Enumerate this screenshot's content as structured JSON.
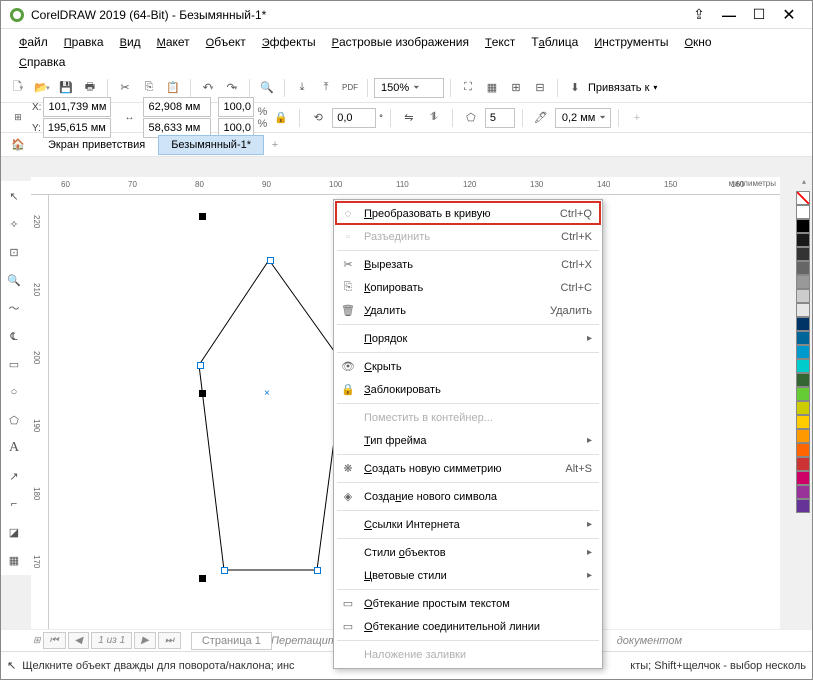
{
  "window": {
    "title": "CorelDRAW 2019 (64-Bit) - Безымянный-1*"
  },
  "menu": {
    "file": "Файл",
    "edit": "Правка",
    "view": "Вид",
    "layout": "Макет",
    "object": "Объект",
    "effects": "Эффекты",
    "raster": "Растровые изображения",
    "text": "Текст",
    "table": "Таблица",
    "tools": "Инструменты",
    "window": "Окно",
    "help": "Справка"
  },
  "toolbar1": {
    "zoom_value": "150%",
    "snap_label": "Привязать к"
  },
  "props": {
    "x": "101,739 мм",
    "y": "195,615 мм",
    "w": "62,908 мм",
    "h": "58,633 мм",
    "sx": "100,0",
    "sy": "100,0",
    "rot": "0,0",
    "sides": "5",
    "outline": "0,2 мм"
  },
  "tabs": {
    "welcome": "Экран приветствия",
    "doc": "Безымянный-1*"
  },
  "pagestrip": {
    "nav": "1 из 1",
    "page": "Страница 1"
  },
  "hints": {
    "drag": "Перетащите сюда цве",
    "doc": "документом"
  },
  "status": {
    "text": "Щелкните объект дважды для поворота/наклона; инс",
    "text2": "кты; Shift+щелчок - выбор несколь"
  },
  "context": {
    "items": [
      {
        "icon": "◌",
        "label": "Преобразовать в кривую",
        "shortcut": "Ctrl+Q",
        "u": "П"
      },
      {
        "icon": "▫",
        "label": "Разъединить",
        "shortcut": "Ctrl+K",
        "disabled": true
      },
      {
        "sep": true
      },
      {
        "icon": "✂",
        "label": "Вырезать",
        "shortcut": "Ctrl+X",
        "u": "В"
      },
      {
        "icon": "⎘",
        "label": "Копировать",
        "shortcut": "Ctrl+C",
        "u": "К"
      },
      {
        "icon": "🗑",
        "label": "Удалить",
        "shortcut": "Удалить",
        "u": "У"
      },
      {
        "sep": true
      },
      {
        "icon": "",
        "label": "Порядок",
        "arrow": true,
        "u": "П"
      },
      {
        "sep": true
      },
      {
        "icon": "👁",
        "label": "Скрыть",
        "u": "С"
      },
      {
        "icon": "🔒",
        "label": "Заблокировать",
        "u": "З"
      },
      {
        "sep": true
      },
      {
        "icon": "",
        "label": "Поместить в контейнер...",
        "disabled": true
      },
      {
        "icon": "",
        "label": "Тип фрейма",
        "arrow": true,
        "u": "Т"
      },
      {
        "sep": true
      },
      {
        "icon": "❋",
        "label": "Создать новую симметрию",
        "shortcut": "Alt+S",
        "u": "С"
      },
      {
        "sep": true
      },
      {
        "icon": "◈",
        "label": "Создание нового символа",
        "u": "н"
      },
      {
        "sep": true
      },
      {
        "icon": "",
        "label": "Ссылки Интернета",
        "arrow": true,
        "u": "С"
      },
      {
        "sep": true
      },
      {
        "icon": "",
        "label": "Стили объектов",
        "arrow": true,
        "u": "о"
      },
      {
        "icon": "",
        "label": "Цветовые стили",
        "arrow": true,
        "u": "Ц"
      },
      {
        "sep": true
      },
      {
        "icon": "▭",
        "label": "Обтекание простым текстом",
        "u": "О"
      },
      {
        "icon": "▭",
        "label": "Обтекание соединительной линии",
        "u": "О"
      },
      {
        "sep": true
      },
      {
        "icon": "",
        "label": "Наложение заливки",
        "disabled": true
      }
    ]
  },
  "palette": {
    "colors": [
      "#ffffff",
      "#000000",
      "#1a1a1a",
      "#333333",
      "#666666",
      "#999999",
      "#cccccc",
      "#e6e6e6",
      "#003366",
      "#006699",
      "#0099cc",
      "#00cccc",
      "#336633",
      "#66cc33",
      "#cccc00",
      "#ffcc00",
      "#ff9900",
      "#ff6600",
      "#cc3333",
      "#cc0066",
      "#993399",
      "#663399"
    ]
  },
  "ruler": {
    "marks": [
      "60",
      "70",
      "80",
      "90",
      "100",
      "110",
      "120",
      "130",
      "140",
      "150",
      "160"
    ],
    "unit": "миллиметры",
    "vmarks": [
      "220",
      "210",
      "200",
      "190",
      "180",
      "170"
    ]
  }
}
